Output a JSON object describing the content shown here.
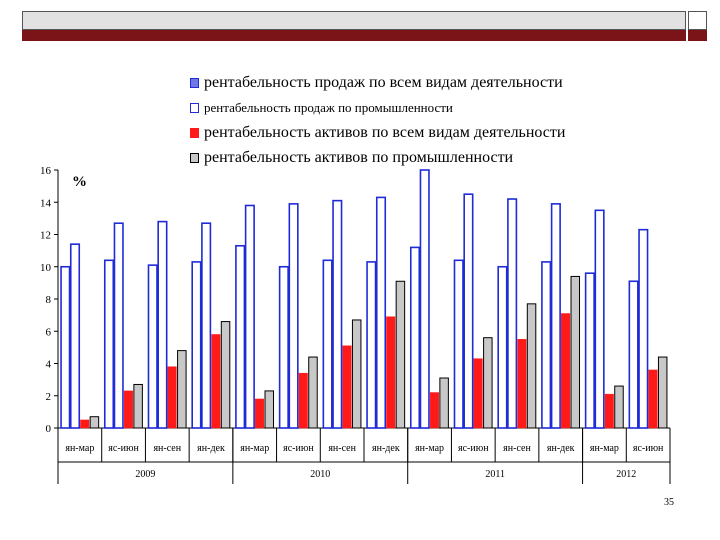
{
  "slide": {
    "page_number": "35"
  },
  "colors": {
    "header_gray": "#e2e2e2",
    "accent": "#7a1418",
    "blue_outline": "#1f2bd6",
    "blue_fill": "#ffffff",
    "red": "#ff1a1a",
    "gray": "#c8c8c8"
  },
  "legend": [
    {
      "label": "рентабельность продаж по всем видам деятельности",
      "swatch": "blue-fill-icon",
      "size": 16
    },
    {
      "label": "рентабельность продаж по промышленности",
      "swatch": "blue-outline-icon",
      "size": 13
    },
    {
      "label": "рентабельность активов по всем видам деятельности",
      "swatch": "red-square-icon",
      "size": 16
    },
    {
      "label": "рентабельность активов по промышленности",
      "swatch": "gray-square-icon",
      "size": 16
    }
  ],
  "chart_data": {
    "type": "bar",
    "unit_label": "%",
    "ylim": [
      0,
      16
    ],
    "yticks": [
      0,
      2,
      4,
      6,
      8,
      10,
      12,
      14,
      16
    ],
    "categories": [
      "ян-мар",
      "яс-июн",
      "ян-сен",
      "ян-дек",
      "ян-мар",
      "яс-июн",
      "ян-сен",
      "ян-дек",
      "ян-мар",
      "яс-июн",
      "ян-сен",
      "ян-дек",
      "ян-мар",
      "яс-июн"
    ],
    "years": [
      {
        "label": "2009",
        "count": 4
      },
      {
        "label": "2010",
        "count": 4
      },
      {
        "label": "2011",
        "count": 4
      },
      {
        "label": "2012",
        "count": 2
      }
    ],
    "series": [
      {
        "name": "рентабельность продаж по всем видам деятельности",
        "style": "blue-filled",
        "values": [
          10.0,
          10.4,
          10.1,
          10.3,
          11.3,
          10.0,
          10.4,
          10.3,
          11.2,
          10.4,
          10.0,
          10.3,
          9.6,
          9.1
        ]
      },
      {
        "name": "рентабельность продаж по промышленности",
        "style": "blue-outline",
        "values": [
          11.4,
          12.7,
          12.8,
          12.7,
          13.8,
          13.9,
          14.1,
          14.3,
          16.0,
          14.5,
          14.2,
          13.9,
          13.5,
          12.3
        ]
      },
      {
        "name": "рентабельность активов по всем видам деятельности",
        "style": "red",
        "values": [
          0.5,
          2.3,
          3.8,
          5.8,
          1.8,
          3.4,
          5.1,
          6.9,
          2.2,
          4.3,
          5.5,
          7.1,
          2.1,
          3.6
        ]
      },
      {
        "name": "рентабельность активов по промышленности",
        "style": "gray",
        "values": [
          0.7,
          2.7,
          4.8,
          6.6,
          2.3,
          4.4,
          6.7,
          9.1,
          3.1,
          5.6,
          7.7,
          9.4,
          2.6,
          4.4
        ]
      }
    ]
  }
}
